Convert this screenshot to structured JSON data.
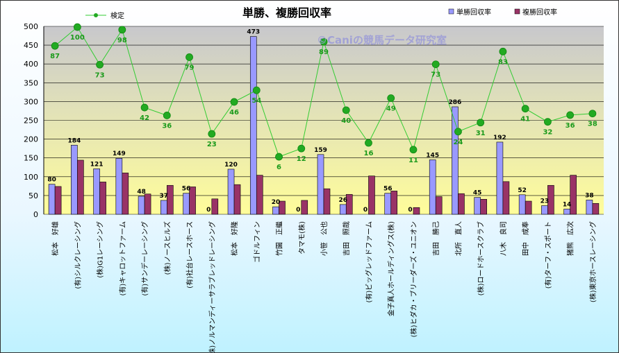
{
  "chart_data": {
    "type": "bar",
    "title": "単勝、複勝回収率",
    "watermark": "©Caniの競馬データ研究室",
    "ylim": [
      0,
      500
    ],
    "yticks": [
      0,
      50,
      100,
      150,
      200,
      250,
      300,
      350,
      400,
      450,
      500
    ],
    "grid": true,
    "categories": [
      "松本　好雄",
      "(有)シルクレーシング",
      "(株)G1レーシング",
      "(有)キャロットファーム",
      "(有)サンデーレーシング",
      "(株)ノースヒルズ",
      "(有)社台レースホース",
      "(株)ノルマンディーサラブレッドレーシング",
      "松本　好隆",
      "ゴドルフィン",
      "竹園　正繼",
      "タマモ(株)",
      "小笹　公也",
      "吉田　照哉",
      "(有)ビッグレッドファーム",
      "金子真人ホールディングス(株)",
      "(株)ヒダカ・ブリーダーズ・ユニオン",
      "吉田　勝己",
      "北所　直人",
      "(株)ロードホースクラブ",
      "八木　良司",
      "田中　成奉",
      "(有)ターフ・スポート",
      "猪熊　広次",
      "(株)東京ホースレーシング"
    ],
    "series": [
      {
        "name": "単勝回収率",
        "kind": "bar",
        "color": "#9999ff",
        "values": [
          80,
          184,
          121,
          149,
          48,
          37,
          56,
          0,
          120,
          473,
          20,
          0,
          159,
          26,
          0,
          56,
          0,
          145,
          286,
          45,
          192,
          52,
          23,
          14,
          38
        ]
      },
      {
        "name": "複勝回収率",
        "kind": "bar",
        "color": "#993366",
        "values": [
          74,
          144,
          86,
          110,
          54,
          77,
          73,
          41,
          79,
          104,
          35,
          37,
          68,
          53,
          102,
          62,
          18,
          47,
          55,
          40,
          87,
          35,
          77,
          104,
          29
        ]
      },
      {
        "name": "検定",
        "kind": "line",
        "color": "#33cc33",
        "values": [
          87,
          100,
          73,
          98,
          42,
          36,
          79,
          23,
          46,
          54,
          6,
          12,
          89,
          40,
          16,
          49,
          11,
          73,
          24,
          31,
          83,
          41,
          32,
          36,
          38
        ],
        "plot_y": [
          448,
          498,
          398,
          491,
          284,
          263,
          418,
          214,
          299,
          330,
          153,
          175,
          459,
          277,
          190,
          309,
          172,
          399,
          220,
          244,
          433,
          281,
          246,
          264,
          268
        ]
      }
    ],
    "legend": {
      "position": "top-right"
    }
  }
}
